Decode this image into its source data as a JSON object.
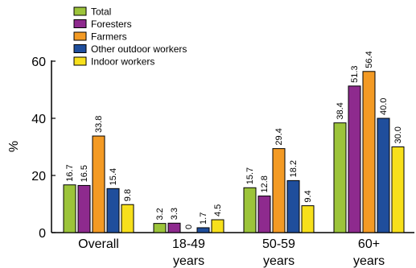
{
  "chart_data": {
    "type": "bar",
    "ylabel": "%",
    "ylim": [
      0,
      60
    ],
    "yticks": [
      0,
      20,
      40,
      60
    ],
    "categories": [
      [
        "Overall"
      ],
      [
        "18-49",
        "years"
      ],
      [
        "50-59",
        "years"
      ],
      [
        "60+",
        "years"
      ]
    ],
    "series": [
      {
        "name": "Total",
        "color": "#9cc43a",
        "values": [
          16.7,
          3.2,
          15.7,
          38.4
        ],
        "labels": [
          "16.7",
          "3.2",
          "15.7",
          "38.4"
        ]
      },
      {
        "name": "Foresters",
        "color": "#8e2a8e",
        "values": [
          16.5,
          3.3,
          12.8,
          51.3
        ],
        "labels": [
          "16.5",
          "3.3",
          "12.8",
          "51.3"
        ]
      },
      {
        "name": "Farmers",
        "color": "#f39a24",
        "values": [
          33.8,
          0,
          29.4,
          56.4
        ],
        "labels": [
          "33.8",
          "0",
          "29.4",
          "56.4"
        ]
      },
      {
        "name": "Other outdoor workers",
        "color": "#1f4e9c",
        "values": [
          15.4,
          1.7,
          18.2,
          40.0
        ],
        "labels": [
          "15.4",
          "1.7",
          "18.2",
          "40.0"
        ]
      },
      {
        "name": "Indoor workers",
        "color": "#f7e01c",
        "values": [
          9.8,
          4.5,
          9.4,
          30.0
        ],
        "labels": [
          "9.8",
          "4.5",
          "9.4",
          "30.0"
        ]
      }
    ],
    "legend_position": "top-left",
    "grid": false
  }
}
